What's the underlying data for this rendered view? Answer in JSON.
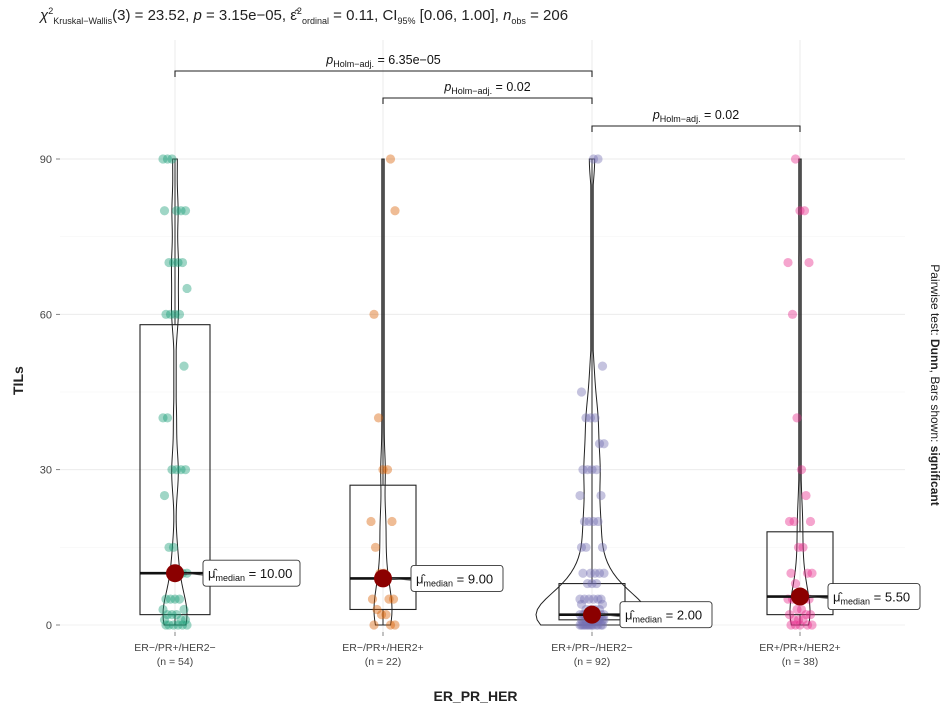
{
  "subtitle": {
    "chi": "χ",
    "chi_sup": "2",
    "chi_sub": "Kruskal−Wallis",
    "df": "(3) = 23.52, ",
    "p_label": "p",
    "p_value": " = 3.15e−05, ",
    "eps": "ε̂",
    "eps_sup": "2",
    "eps_sub": "ordinal",
    "eps_value": " = 0.11, CI",
    "ci_sub": "95%",
    "ci_value": " [0.06, 1.00], ",
    "n_label": "n",
    "n_sub": "obs",
    "n_value": " = 206"
  },
  "caption": {
    "prefix": "Pairwise test: ",
    "test": "Dunn",
    "middle": ", Bars shown: ",
    "bars": "significant"
  },
  "chart_data": {
    "type": "box-violin",
    "xlabel": "ER_PR_HER",
    "ylabel": "TILs",
    "ylim": [
      -2,
      114
    ],
    "yticks": [
      0,
      30,
      60,
      90
    ],
    "grid": true,
    "categories": [
      {
        "label": "ER−/PR+/HER2−",
        "n": "(n = 54)",
        "color": "#1b9e77",
        "q1": 2,
        "median": 10,
        "q3": 58,
        "whisker_low": 0,
        "whisker_high": 90,
        "mean": 10,
        "mean_label": "10.00",
        "points": [
          90,
          90,
          90,
          80,
          80,
          80,
          80,
          70,
          70,
          70,
          70,
          65,
          60,
          60,
          60,
          60,
          50,
          40,
          40,
          30,
          30,
          30,
          30,
          25,
          15,
          15,
          10,
          10,
          10,
          5,
          5,
          5,
          5,
          3,
          3,
          2,
          2,
          2,
          1,
          1,
          1,
          0,
          0,
          0,
          0,
          0,
          0
        ]
      },
      {
        "label": "ER−/PR+/HER2+",
        "n": "(n = 22)",
        "color": "#d95f02",
        "q1": 3,
        "median": 9,
        "q3": 27,
        "whisker_low": 0,
        "whisker_high": 90,
        "mean": 9,
        "mean_label": "9.00",
        "points": [
          90,
          80,
          60,
          40,
          30,
          30,
          20,
          20,
          15,
          10,
          10,
          5,
          5,
          5,
          3,
          2,
          2,
          0,
          0,
          0
        ]
      },
      {
        "label": "ER+/PR−/HER2−",
        "n": "(n = 92)",
        "color": "#7570b3",
        "q1": 1,
        "median": 2,
        "q3": 8,
        "whisker_low": 0,
        "whisker_high": 90,
        "mean": 2,
        "mean_label": "2.00",
        "points": [
          90,
          90,
          50,
          45,
          40,
          40,
          40,
          35,
          35,
          30,
          30,
          30,
          30,
          25,
          25,
          20,
          20,
          20,
          20,
          15,
          15,
          15,
          10,
          10,
          10,
          10,
          10,
          8,
          8,
          8,
          5,
          5,
          5,
          5,
          5,
          5,
          4,
          4,
          3,
          3,
          3,
          3,
          2,
          2,
          2,
          2,
          2,
          2,
          2,
          2,
          1,
          1,
          1,
          1,
          1,
          1,
          1,
          1,
          1,
          1,
          0,
          0,
          0,
          0,
          0,
          0,
          0,
          0,
          0,
          0,
          0,
          0,
          0,
          0
        ]
      },
      {
        "label": "ER+/PR+/HER2+",
        "n": "(n = 38)",
        "color": "#e7298a",
        "q1": 2,
        "median": 5.5,
        "q3": 18,
        "whisker_low": 0,
        "whisker_high": 90,
        "mean": 5.5,
        "mean_label": "5.50",
        "points": [
          90,
          80,
          80,
          70,
          70,
          60,
          40,
          30,
          25,
          20,
          20,
          20,
          15,
          15,
          10,
          10,
          10,
          8,
          5,
          5,
          5,
          5,
          5,
          3,
          3,
          2,
          2,
          2,
          1,
          1,
          1,
          0,
          0,
          0,
          0,
          0
        ]
      }
    ],
    "annotations": [
      {
        "from": 0,
        "to": 2,
        "y": 102,
        "label_prefix": "p",
        "label_sub": "Holm−adj.",
        "label_value": " = 6.35e−05"
      },
      {
        "from": 1,
        "to": 2,
        "y": 96,
        "label_prefix": "p",
        "label_sub": "Holm−adj.",
        "label_value": " = 0.02"
      },
      {
        "from": 2,
        "to": 3,
        "y": 87,
        "label_prefix": "p",
        "label_sub": "Holm−adj.",
        "label_value": " = 0.02"
      }
    ],
    "median_label_prefix": "μ̂",
    "median_label_sub": "median",
    "median_label_eq": " = ",
    "mean_color": "#8b0000"
  }
}
